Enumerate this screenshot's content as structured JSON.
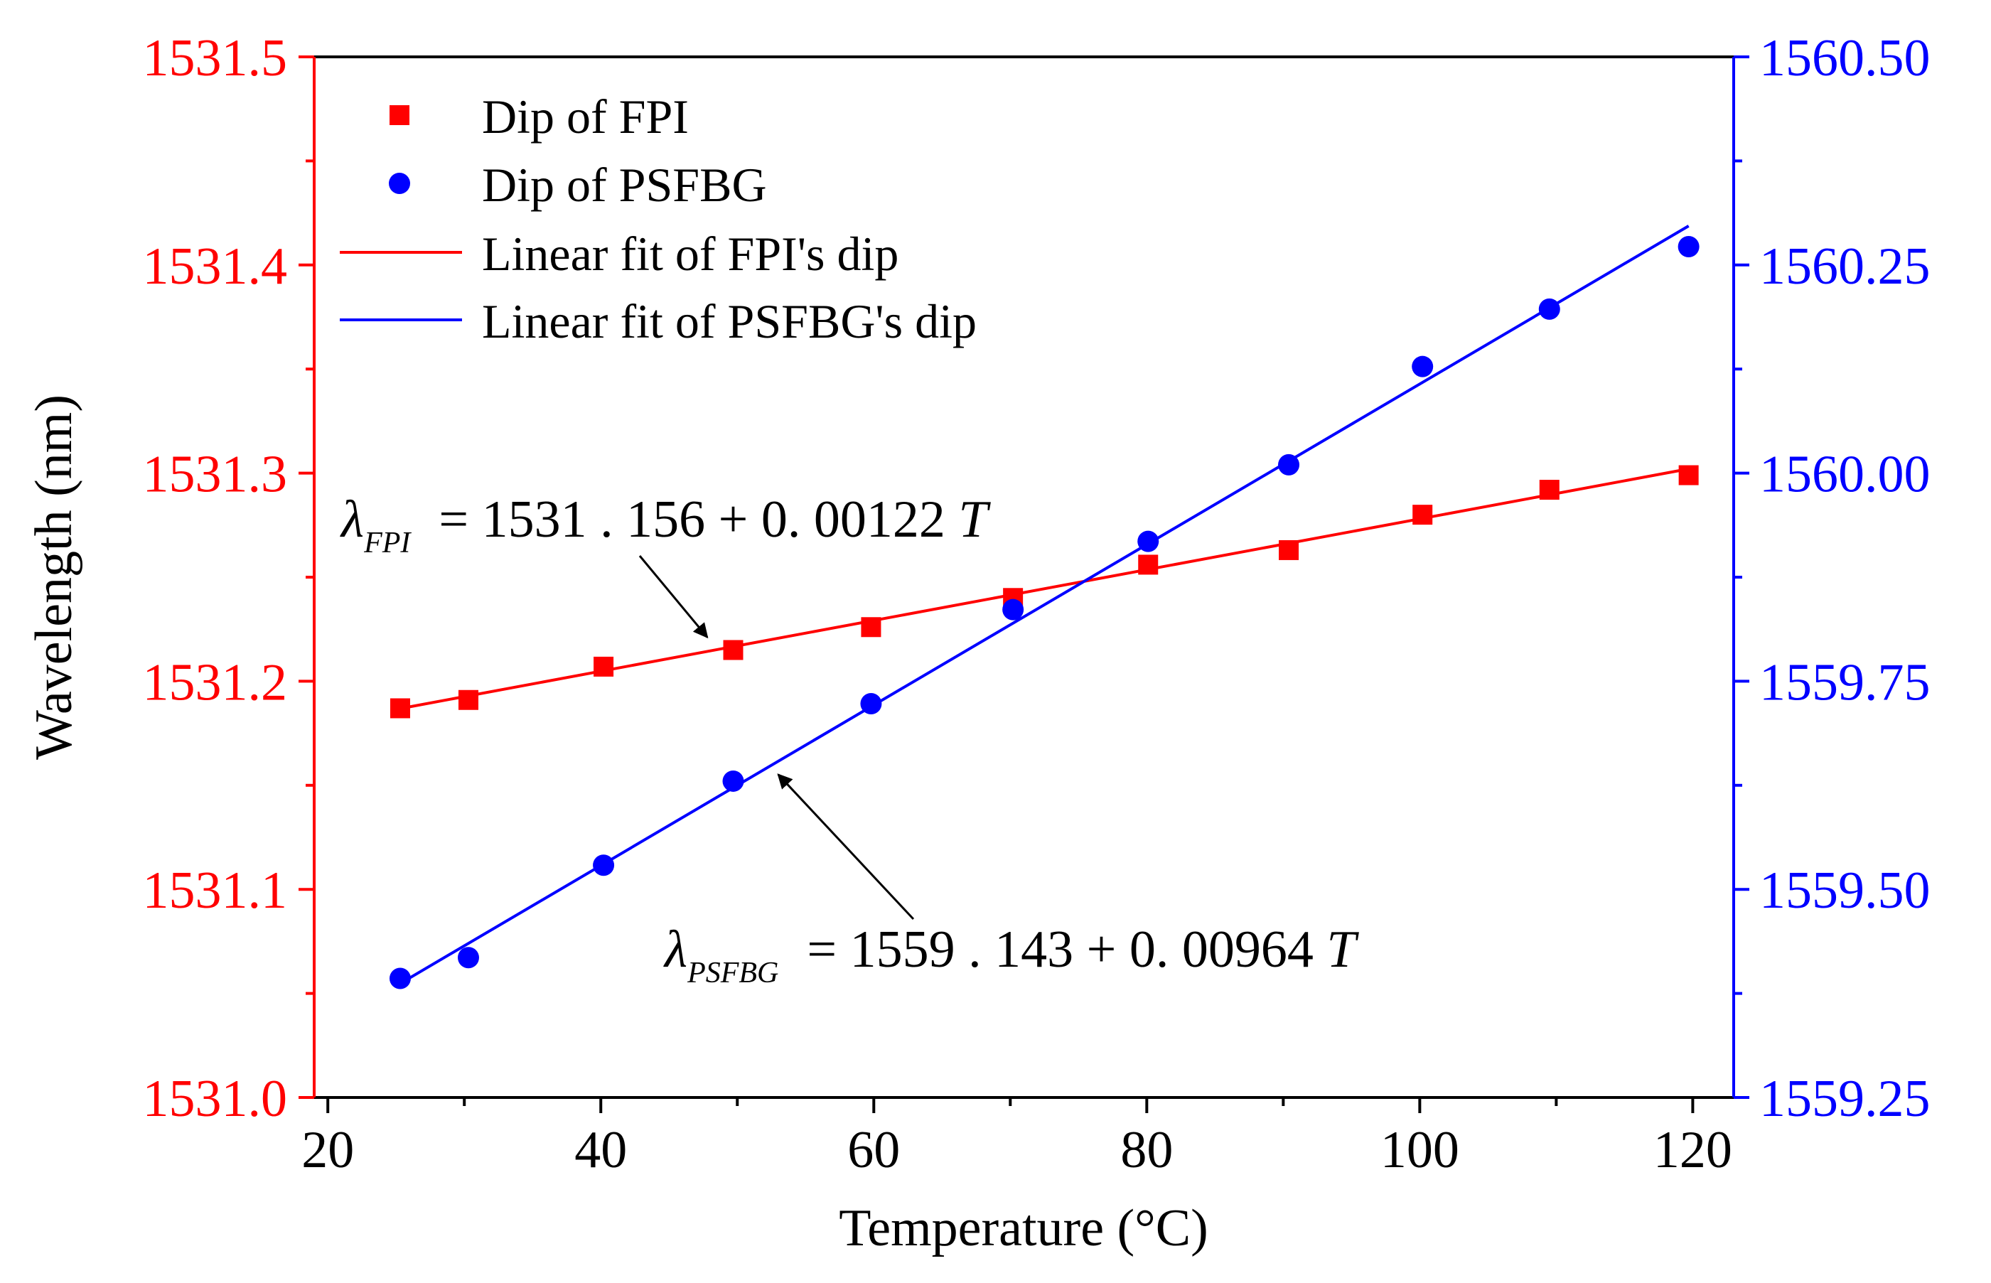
{
  "chart_data": {
    "type": "scatter",
    "xlabel": "Temperature (°C)",
    "ylabel": "Wavelength (nm)",
    "xlim": [
      19,
      123
    ],
    "x_ticks": [
      20,
      40,
      60,
      80,
      100,
      120
    ],
    "x_tick_labels": [
      "20",
      "40",
      "60",
      "80",
      "100",
      "120"
    ],
    "y_left": {
      "lim": [
        1531.0,
        1531.5
      ],
      "ticks": [
        1531.0,
        1531.1,
        1531.2,
        1531.3,
        1531.4,
        1531.5
      ],
      "tick_labels": [
        "1531.0",
        "1531.1",
        "1531.2",
        "1531.3",
        "1531.4",
        "1531.5"
      ],
      "color": "#ff0000"
    },
    "y_right": {
      "lim": [
        1559.25,
        1560.5
      ],
      "ticks": [
        1559.25,
        1559.5,
        1559.75,
        1560.0,
        1560.25,
        1560.5
      ],
      "tick_labels": [
        "1559.25",
        "1559.50",
        "1559.75",
        "1560.00",
        "1560.25",
        "1560.50"
      ],
      "color": "#0000ff"
    },
    "series": [
      {
        "name": "Dip of FPI",
        "axis": "left",
        "marker": "square",
        "color": "#ff0000",
        "x": [
          25.3,
          30.3,
          40.2,
          49.7,
          59.8,
          70.2,
          80.1,
          90.4,
          100.2,
          109.5,
          119.7
        ],
        "y": [
          1531.187,
          1531.191,
          1531.207,
          1531.215,
          1531.226,
          1531.24,
          1531.256,
          1531.263,
          1531.28,
          1531.292,
          1531.299
        ]
      },
      {
        "name": "Dip of PSFBG",
        "axis": "right",
        "marker": "circle",
        "color": "#0000ff",
        "x": [
          25.3,
          30.3,
          40.2,
          49.7,
          59.8,
          70.2,
          80.1,
          90.4,
          100.2,
          109.5,
          119.7
        ],
        "y": [
          1559.393,
          1559.418,
          1559.529,
          1559.63,
          1559.723,
          1559.836,
          1559.918,
          1560.01,
          1560.128,
          1560.197,
          1560.272
        ]
      }
    ],
    "fits": [
      {
        "name": "Linear fit of FPI's dip",
        "axis": "left",
        "color": "#ff0000",
        "intercept": 1531.156,
        "slope": 0.00122,
        "x_range": [
          25.3,
          119.7
        ]
      },
      {
        "name": "Linear fit of PSFBG's dip",
        "axis": "right",
        "color": "#0000ff",
        "intercept": 1559.143,
        "slope": 0.00964,
        "x_range": [
          25.3,
          119.7
        ]
      }
    ],
    "annotations": [
      {
        "symbol": "λ",
        "subscript": "FPI",
        "equation": "= 1531 . 156 + 0. 00122",
        "variable": "T",
        "arrow_to": [
          47.8,
          1531.215
        ]
      },
      {
        "symbol": "λ",
        "subscript": "PSFBG",
        "equation": "= 1559 . 143 + 0. 00964",
        "variable": "T",
        "arrow_to": [
          53.0,
          1559.655
        ]
      }
    ],
    "legend": {
      "position": "top-left",
      "entries": [
        "Dip of FPI",
        "Dip of PSFBG",
        "Linear fit of FPI's dip",
        "Linear fit of PSFBG's dip"
      ]
    }
  }
}
